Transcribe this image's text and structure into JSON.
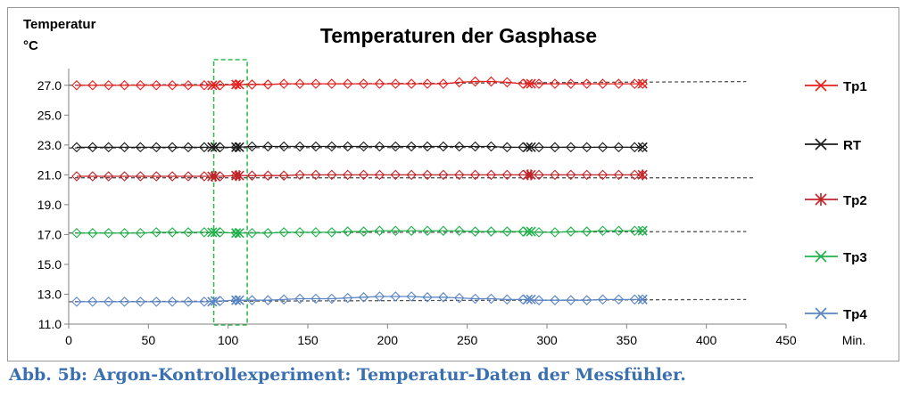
{
  "caption": "Abb. 5b: Argon-Kontrollexperiment: Temperatur-Daten der Messfühler.",
  "chart_data": {
    "type": "line",
    "title": "Temperaturen der Gasphase",
    "ylabel_lines": [
      "Temperatur",
      "°C"
    ],
    "xlabel": "Min.",
    "xlim": [
      0,
      450
    ],
    "ylim": [
      11,
      28
    ],
    "xticks": [
      0,
      50,
      100,
      150,
      200,
      250,
      300,
      350,
      400,
      450
    ],
    "yticks": [
      11,
      13,
      15,
      17,
      19,
      21,
      23,
      25,
      27
    ],
    "ytick_labels": [
      "11.0",
      "13.0",
      "15.0",
      "17.0",
      "19.0",
      "21.0",
      "23.0",
      "25.0",
      "27.0"
    ],
    "grid": false,
    "legend_position": "right",
    "highlight_box": {
      "x_start": 91,
      "x_end": 112,
      "style": "dashed",
      "color": "#2db84a"
    },
    "series": [
      {
        "name": "Tp1",
        "color": "#e8211f",
        "marker": "diamond",
        "legend_marker": "x",
        "x": [
          5,
          15,
          25,
          35,
          45,
          55,
          65,
          75,
          85,
          95,
          105,
          115,
          125,
          135,
          145,
          155,
          165,
          175,
          185,
          195,
          205,
          215,
          225,
          235,
          245,
          255,
          265,
          275,
          285,
          295,
          305,
          315,
          325,
          335,
          345,
          355,
          360
        ],
        "values": [
          27.0,
          27.0,
          27.0,
          27.0,
          27.0,
          27.0,
          27.0,
          27.0,
          27.0,
          27.0,
          27.05,
          27.05,
          27.05,
          27.1,
          27.1,
          27.1,
          27.1,
          27.1,
          27.1,
          27.1,
          27.1,
          27.1,
          27.1,
          27.1,
          27.2,
          27.25,
          27.25,
          27.2,
          27.1,
          27.1,
          27.1,
          27.1,
          27.1,
          27.1,
          27.1,
          27.1,
          27.1
        ],
        "trend_x": [
          0,
          425
        ],
        "trend_y": [
          27.0,
          27.25
        ]
      },
      {
        "name": "RT",
        "color": "#1c1c1c",
        "marker": "diamond",
        "legend_marker": "x",
        "x": [
          5,
          15,
          25,
          35,
          45,
          55,
          65,
          75,
          85,
          95,
          105,
          115,
          125,
          135,
          145,
          155,
          165,
          175,
          185,
          195,
          205,
          215,
          225,
          235,
          245,
          255,
          265,
          275,
          285,
          295,
          305,
          315,
          325,
          335,
          345,
          355,
          360
        ],
        "values": [
          22.85,
          22.85,
          22.85,
          22.85,
          22.85,
          22.85,
          22.85,
          22.85,
          22.85,
          22.85,
          22.85,
          22.9,
          22.9,
          22.9,
          22.9,
          22.9,
          22.9,
          22.9,
          22.9,
          22.9,
          22.9,
          22.9,
          22.9,
          22.9,
          22.9,
          22.9,
          22.9,
          22.85,
          22.85,
          22.85,
          22.85,
          22.85,
          22.85,
          22.85,
          22.85,
          22.85,
          22.85
        ],
        "trend_x": [
          0,
          360
        ],
        "trend_y": [
          22.8,
          22.85
        ]
      },
      {
        "name": "Tp2",
        "color": "#c0252a",
        "marker": "diamond",
        "legend_marker": "asterisk",
        "x": [
          5,
          15,
          25,
          35,
          45,
          55,
          65,
          75,
          85,
          95,
          105,
          115,
          125,
          135,
          145,
          155,
          165,
          175,
          185,
          195,
          205,
          215,
          225,
          235,
          245,
          255,
          265,
          275,
          285,
          295,
          305,
          315,
          325,
          335,
          345,
          355,
          360
        ],
        "values": [
          20.9,
          20.9,
          20.9,
          20.9,
          20.9,
          20.9,
          20.9,
          20.9,
          20.9,
          20.9,
          20.95,
          20.95,
          20.95,
          20.95,
          21.0,
          21.0,
          21.0,
          21.0,
          21.0,
          21.0,
          21.0,
          21.0,
          21.0,
          21.0,
          21.0,
          21.0,
          21.0,
          21.0,
          21.0,
          21.0,
          21.0,
          21.0,
          21.0,
          21.0,
          21.0,
          21.0,
          21.0
        ],
        "trend_x": [
          0,
          430
        ],
        "trend_y": [
          20.8,
          20.8
        ]
      },
      {
        "name": "Tp3",
        "color": "#22b14c",
        "marker": "diamond",
        "legend_marker": "x",
        "x": [
          5,
          15,
          25,
          35,
          45,
          55,
          65,
          75,
          85,
          95,
          105,
          115,
          125,
          135,
          145,
          155,
          165,
          175,
          185,
          195,
          205,
          215,
          225,
          235,
          245,
          255,
          265,
          275,
          285,
          295,
          305,
          315,
          325,
          335,
          345,
          355,
          360
        ],
        "values": [
          17.1,
          17.1,
          17.1,
          17.1,
          17.1,
          17.15,
          17.15,
          17.15,
          17.15,
          17.15,
          17.1,
          17.1,
          17.1,
          17.15,
          17.15,
          17.15,
          17.15,
          17.2,
          17.2,
          17.25,
          17.25,
          17.25,
          17.25,
          17.25,
          17.25,
          17.2,
          17.2,
          17.2,
          17.2,
          17.15,
          17.15,
          17.2,
          17.2,
          17.25,
          17.25,
          17.25,
          17.25
        ],
        "trend_x": [
          0,
          425
        ],
        "trend_y": [
          17.1,
          17.2
        ]
      },
      {
        "name": "Tp4",
        "color": "#5b86c5",
        "marker": "diamond",
        "legend_marker": "x",
        "x": [
          5,
          15,
          25,
          35,
          45,
          55,
          65,
          75,
          85,
          95,
          105,
          115,
          125,
          135,
          145,
          155,
          165,
          175,
          185,
          195,
          205,
          215,
          225,
          235,
          245,
          255,
          265,
          275,
          285,
          295,
          305,
          315,
          325,
          335,
          345,
          355,
          360
        ],
        "values": [
          12.5,
          12.5,
          12.5,
          12.5,
          12.5,
          12.5,
          12.5,
          12.5,
          12.5,
          12.55,
          12.6,
          12.6,
          12.6,
          12.65,
          12.7,
          12.7,
          12.7,
          12.75,
          12.8,
          12.85,
          12.85,
          12.85,
          12.8,
          12.8,
          12.75,
          12.7,
          12.7,
          12.65,
          12.65,
          12.6,
          12.6,
          12.6,
          12.6,
          12.65,
          12.65,
          12.65,
          12.65
        ],
        "trend_x": [
          0,
          425
        ],
        "trend_y": [
          12.5,
          12.65
        ]
      }
    ]
  }
}
